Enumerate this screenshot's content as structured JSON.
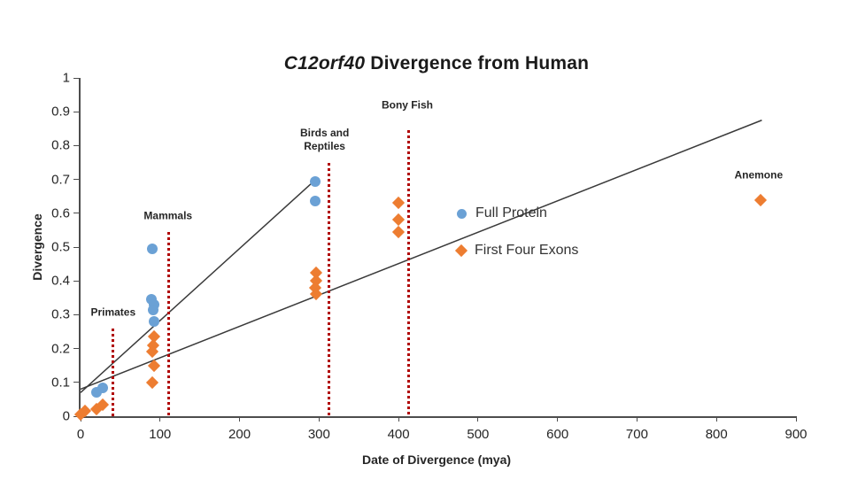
{
  "title": {
    "italic": "C12orf40",
    "rest": " Divergence from Human"
  },
  "axes": {
    "x": {
      "label": "Date of Divergence (mya)",
      "min": 0,
      "max": 900,
      "ticks": [
        0,
        100,
        200,
        300,
        400,
        500,
        600,
        700,
        800,
        900
      ],
      "tick_labels": [
        "0",
        "100",
        "200",
        "300",
        "400",
        "500",
        "600",
        "700",
        "800",
        "900"
      ]
    },
    "y": {
      "label": "Divergence",
      "min": 0,
      "max": 1,
      "ticks": [
        0,
        0.1,
        0.2,
        0.3,
        0.4,
        0.5,
        0.6,
        0.7,
        0.8,
        0.9,
        1
      ],
      "tick_labels": [
        "0",
        "0.1",
        "0.2",
        "0.3",
        "0.4",
        "0.5",
        "0.6",
        "0.7",
        "0.8",
        "0.9",
        "1"
      ]
    }
  },
  "colors": {
    "full_protein": "#6BA1D5",
    "first_four_exons": "#ED7D31",
    "reference_line": "#B00000",
    "trend_line": "#3a3a3a",
    "axis": "#4d4d4d",
    "text": "#262626"
  },
  "chart_data": {
    "type": "scatter",
    "title": "C12orf40 Divergence from Human",
    "xlabel": "Date of Divergence (mya)",
    "ylabel": "Divergence",
    "xlim": [
      0,
      900
    ],
    "ylim": [
      0,
      1
    ],
    "grid": false,
    "legend_position": "center-right",
    "series": [
      {
        "name": "Full Protein",
        "marker": "circle",
        "color": "#6BA1D5",
        "points": [
          [
            20,
            0.07
          ],
          [
            28,
            0.085
          ],
          [
            90,
            0.495
          ],
          [
            89,
            0.345
          ],
          [
            93,
            0.33
          ],
          [
            91,
            0.315
          ],
          [
            92,
            0.28
          ],
          [
            295,
            0.695
          ],
          [
            295,
            0.635
          ]
        ]
      },
      {
        "name": "First Four Exons",
        "marker": "diamond",
        "color": "#ED7D31",
        "points": [
          [
            0,
            0.005
          ],
          [
            6,
            0.015
          ],
          [
            20,
            0.022
          ],
          [
            28,
            0.035
          ],
          [
            93,
            0.235
          ],
          [
            91,
            0.21
          ],
          [
            90,
            0.19
          ],
          [
            93,
            0.15
          ],
          [
            90,
            0.1
          ],
          [
            296,
            0.425
          ],
          [
            296,
            0.4
          ],
          [
            295,
            0.38
          ],
          [
            296,
            0.36
          ],
          [
            400,
            0.63
          ],
          [
            400,
            0.58
          ],
          [
            400,
            0.545
          ],
          [
            855,
            0.64
          ]
        ]
      }
    ],
    "trend_lines": [
      {
        "name": "full-protein-trend",
        "from": [
          0,
          0.07
        ],
        "to": [
          296,
          0.7
        ]
      },
      {
        "name": "first-four-exons-trend",
        "from": [
          0,
          0.08
        ],
        "to": [
          857,
          0.875
        ]
      }
    ],
    "reference_lines": [
      {
        "name": "primates",
        "x": 41,
        "y_top": 0.26,
        "label": "Primates",
        "label_x": 41,
        "label_y": 0.305
      },
      {
        "name": "mammals",
        "x": 111,
        "y_top": 0.545,
        "label": "Mammals",
        "label_x": 110,
        "label_y": 0.592
      },
      {
        "name": "birds-reptiles",
        "x": 312,
        "y_top": 0.75,
        "label": "Birds and\nReptiles",
        "label_x": 307,
        "label_y": 0.818
      },
      {
        "name": "bony-fish",
        "x": 413,
        "y_top": 0.845,
        "label": "Bony Fish",
        "label_x": 411,
        "label_y": 0.92
      }
    ],
    "annotations": [
      {
        "name": "anemone",
        "label": "Anemone",
        "x": 853,
        "y": 0.712
      }
    ]
  },
  "legend": {
    "items": [
      {
        "label": "Full Protein",
        "marker": "circle"
      },
      {
        "label": "First Four Exons",
        "marker": "diamond"
      }
    ]
  }
}
